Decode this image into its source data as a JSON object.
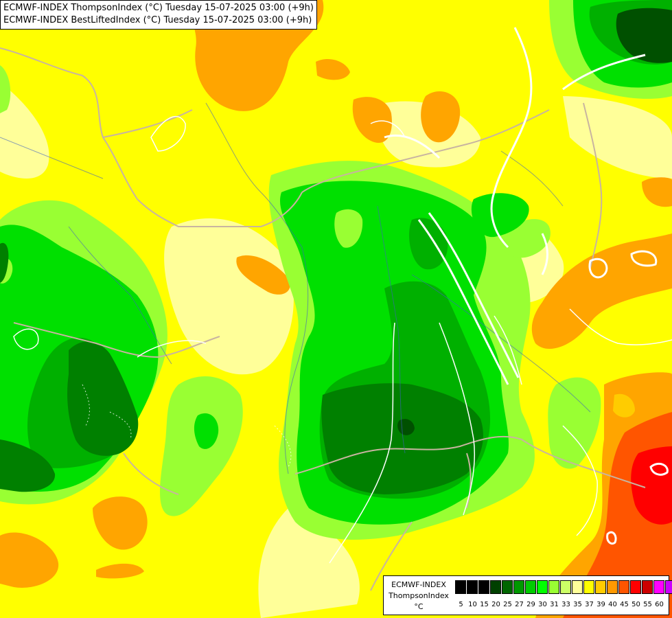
{
  "header": {
    "line1": "ECMWF-INDEX ThompsonIndex (°C) Tuesday 15-07-2025 03:00 (+9h)",
    "line2": "ECMWF-INDEX BestLiftedIndex (°C) Tuesday 15-07-2025 03:00 (+9h)"
  },
  "legend": {
    "title": "ECMWF-INDEX",
    "subtitle": "ThompsonIndex",
    "unit": "°C",
    "ticks": [
      "5",
      "10",
      "15",
      "20",
      "25",
      "27",
      "29",
      "30",
      "31",
      "33",
      "35",
      "37",
      "39",
      "40",
      "45",
      "50",
      "55",
      "60"
    ],
    "colors": [
      "#000000",
      "#000000",
      "#000000",
      "#004000",
      "#006600",
      "#009900",
      "#00cc00",
      "#00ff00",
      "#99ff33",
      "#ccff66",
      "#ffff99",
      "#ffff00",
      "#ffcc00",
      "#ff9900",
      "#ff5500",
      "#ff0000",
      "#cc0000",
      "#ff00ff",
      "#cc00ff",
      "#8000ff",
      "#0000ff"
    ]
  },
  "field_colors": {
    "yellow": "#ffff00",
    "pale_yellow": "#ffff99",
    "orange": "#ffa500",
    "light_orange": "#ffcc00",
    "lime": "#99ff33",
    "green": "#00e000",
    "mid_green": "#00b000",
    "dark_green": "#008000",
    "darkest_green": "#005000",
    "red_orange": "#ff5500",
    "red": "#ff0000"
  }
}
